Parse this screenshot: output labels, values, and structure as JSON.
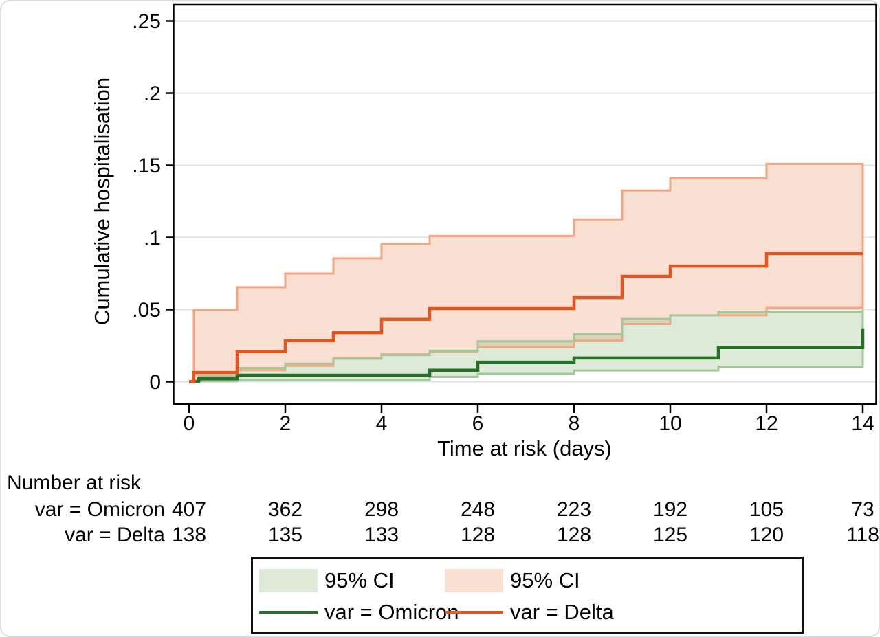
{
  "figure": {
    "y_axis": {
      "title": "Cumulative hospitalisation",
      "ticks": [
        0,
        0.05,
        0.1,
        0.15,
        0.2,
        0.25
      ],
      "tick_labels": [
        "0",
        ".05",
        ".1",
        ".15",
        ".2",
        ".25"
      ],
      "range": [
        0,
        0.25
      ]
    },
    "x_axis": {
      "title": "Time at risk (days)",
      "ticks": [
        0,
        2,
        4,
        6,
        8,
        10,
        12,
        14
      ],
      "tick_labels": [
        "0",
        "2",
        "4",
        "6",
        "8",
        "10",
        "12",
        "14"
      ],
      "range": [
        0,
        14
      ]
    }
  },
  "chart_data": {
    "type": "area",
    "subtype": "kaplan-meier-cumulative-incidence-step",
    "title": "",
    "xlabel": "Time at risk (days)",
    "ylabel": "Cumulative hospitalisation",
    "xlim": [
      0,
      14
    ],
    "ylim": [
      0,
      0.25
    ],
    "grid": true,
    "series": [
      {
        "name": "var = Omicron",
        "kind": "step-line",
        "color": "#26702a",
        "points": [
          [
            0,
            0
          ],
          [
            0.2,
            0.002
          ],
          [
            1,
            0.0045
          ],
          [
            5,
            0.008
          ],
          [
            6,
            0.0135
          ],
          [
            8,
            0.0165
          ],
          [
            11,
            0.0237
          ],
          [
            14,
            0.0365
          ]
        ]
      },
      {
        "name": "95% CI (Omicron)",
        "kind": "step-band",
        "fill": "rgba(143,184,127,0.30)",
        "edge": "#a3c79a",
        "upper": [
          [
            0,
            0
          ],
          [
            0.2,
            0.004
          ],
          [
            1,
            0.0095
          ],
          [
            2,
            0.0125
          ],
          [
            3,
            0.016
          ],
          [
            4,
            0.0185
          ],
          [
            5,
            0.0215
          ],
          [
            6,
            0.028
          ],
          [
            8,
            0.033
          ],
          [
            9,
            0.0435
          ],
          [
            10,
            0.046
          ],
          [
            11,
            0.0485
          ],
          [
            14,
            0.05
          ]
        ],
        "lower": [
          [
            0,
            0
          ],
          [
            0.2,
            0.0004
          ],
          [
            1,
            0.0012
          ],
          [
            5,
            0.0034
          ],
          [
            6,
            0.0055
          ],
          [
            8,
            0.0078
          ],
          [
            11,
            0.0105
          ],
          [
            14,
            0.0169
          ]
        ]
      },
      {
        "name": "var = Delta",
        "kind": "step-line",
        "color": "#e2571f",
        "points": [
          [
            0,
            0
          ],
          [
            0.1,
            0.0064
          ],
          [
            1,
            0.0208
          ],
          [
            2,
            0.0284
          ],
          [
            3,
            0.034
          ],
          [
            4,
            0.0432
          ],
          [
            5,
            0.0507
          ],
          [
            8,
            0.0583
          ],
          [
            9,
            0.0731
          ],
          [
            10,
            0.0802
          ],
          [
            12,
            0.0888
          ],
          [
            14,
            0.0888
          ]
        ]
      },
      {
        "name": "95% CI (Delta)",
        "kind": "step-band",
        "fill": "#fadfd3",
        "edge": "#f2a683",
        "upper": [
          [
            0.1,
            0.05
          ],
          [
            1,
            0.0655
          ],
          [
            2,
            0.075
          ],
          [
            3,
            0.0855
          ],
          [
            4,
            0.0955
          ],
          [
            5,
            0.101
          ],
          [
            8,
            0.1125
          ],
          [
            9,
            0.1325
          ],
          [
            10,
            0.141
          ],
          [
            12,
            0.151
          ],
          [
            14,
            0.151
          ]
        ],
        "lower": [
          [
            0.1,
            0.001
          ],
          [
            1,
            0.008
          ],
          [
            2,
            0.011
          ],
          [
            3,
            0.0165
          ],
          [
            4,
            0.019
          ],
          [
            5,
            0.021
          ],
          [
            6,
            0.024
          ],
          [
            8,
            0.0285
          ],
          [
            9,
            0.04
          ],
          [
            10,
            0.046
          ],
          [
            12,
            0.0512
          ],
          [
            14,
            0.0512
          ]
        ]
      }
    ]
  },
  "risk_table": {
    "header": "Number at risk",
    "times": [
      0,
      2,
      4,
      6,
      8,
      10,
      12,
      14
    ],
    "rows": [
      {
        "label": "var = Omicron",
        "values": [
          "407",
          "362",
          "298",
          "248",
          "223",
          "192",
          "105",
          "73"
        ]
      },
      {
        "label": "var = Delta",
        "values": [
          "138",
          "135",
          "133",
          "128",
          "128",
          "125",
          "120",
          "118"
        ]
      }
    ]
  },
  "legend": {
    "items": [
      {
        "id": "omicron-ci",
        "type": "area",
        "label": "95% CI",
        "color": "#dfe9d8"
      },
      {
        "id": "delta-ci",
        "type": "area",
        "label": "95% CI",
        "color": "#fbe0d4"
      },
      {
        "id": "omicron-line",
        "type": "line",
        "label": "var = Omicron",
        "color": "#26702a"
      },
      {
        "id": "delta-line",
        "type": "line",
        "label": "var = Delta",
        "color": "#e2571f"
      }
    ]
  },
  "colors": {
    "omicron_line": "#26702a",
    "omicron_band": "#dfe9d8",
    "omicron_band_edge": "#a3c79a",
    "delta_line": "#e2571f",
    "delta_band": "#fadfd3",
    "delta_band_edge": "#f2a683",
    "grid": "#e0e0e0",
    "axis": "#000000"
  }
}
